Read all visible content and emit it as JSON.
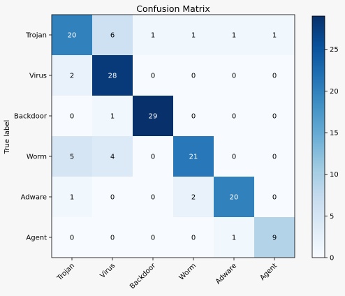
{
  "chart_data": {
    "type": "heatmap",
    "title": "Confusion Matrix",
    "ylabel": "True label",
    "xlabel": "",
    "rows": [
      "Trojan",
      "Virus",
      "Backdoor",
      "Worm",
      "Adware",
      "Agent"
    ],
    "cols": [
      "Trojan",
      "Virus",
      "Backdoor",
      "Worm",
      "Adware",
      "Agent"
    ],
    "values": [
      [
        20,
        6,
        1,
        1,
        1,
        1
      ],
      [
        2,
        28,
        0,
        0,
        0,
        0
      ],
      [
        0,
        1,
        29,
        0,
        0,
        0
      ],
      [
        5,
        4,
        0,
        21,
        0,
        0
      ],
      [
        1,
        0,
        0,
        2,
        20,
        0
      ],
      [
        0,
        0,
        0,
        0,
        1,
        9
      ]
    ],
    "colorbar": {
      "min": 0,
      "max": 29,
      "ticks": [
        0,
        5,
        10,
        15,
        20,
        25
      ]
    },
    "colormap": "Blues"
  }
}
